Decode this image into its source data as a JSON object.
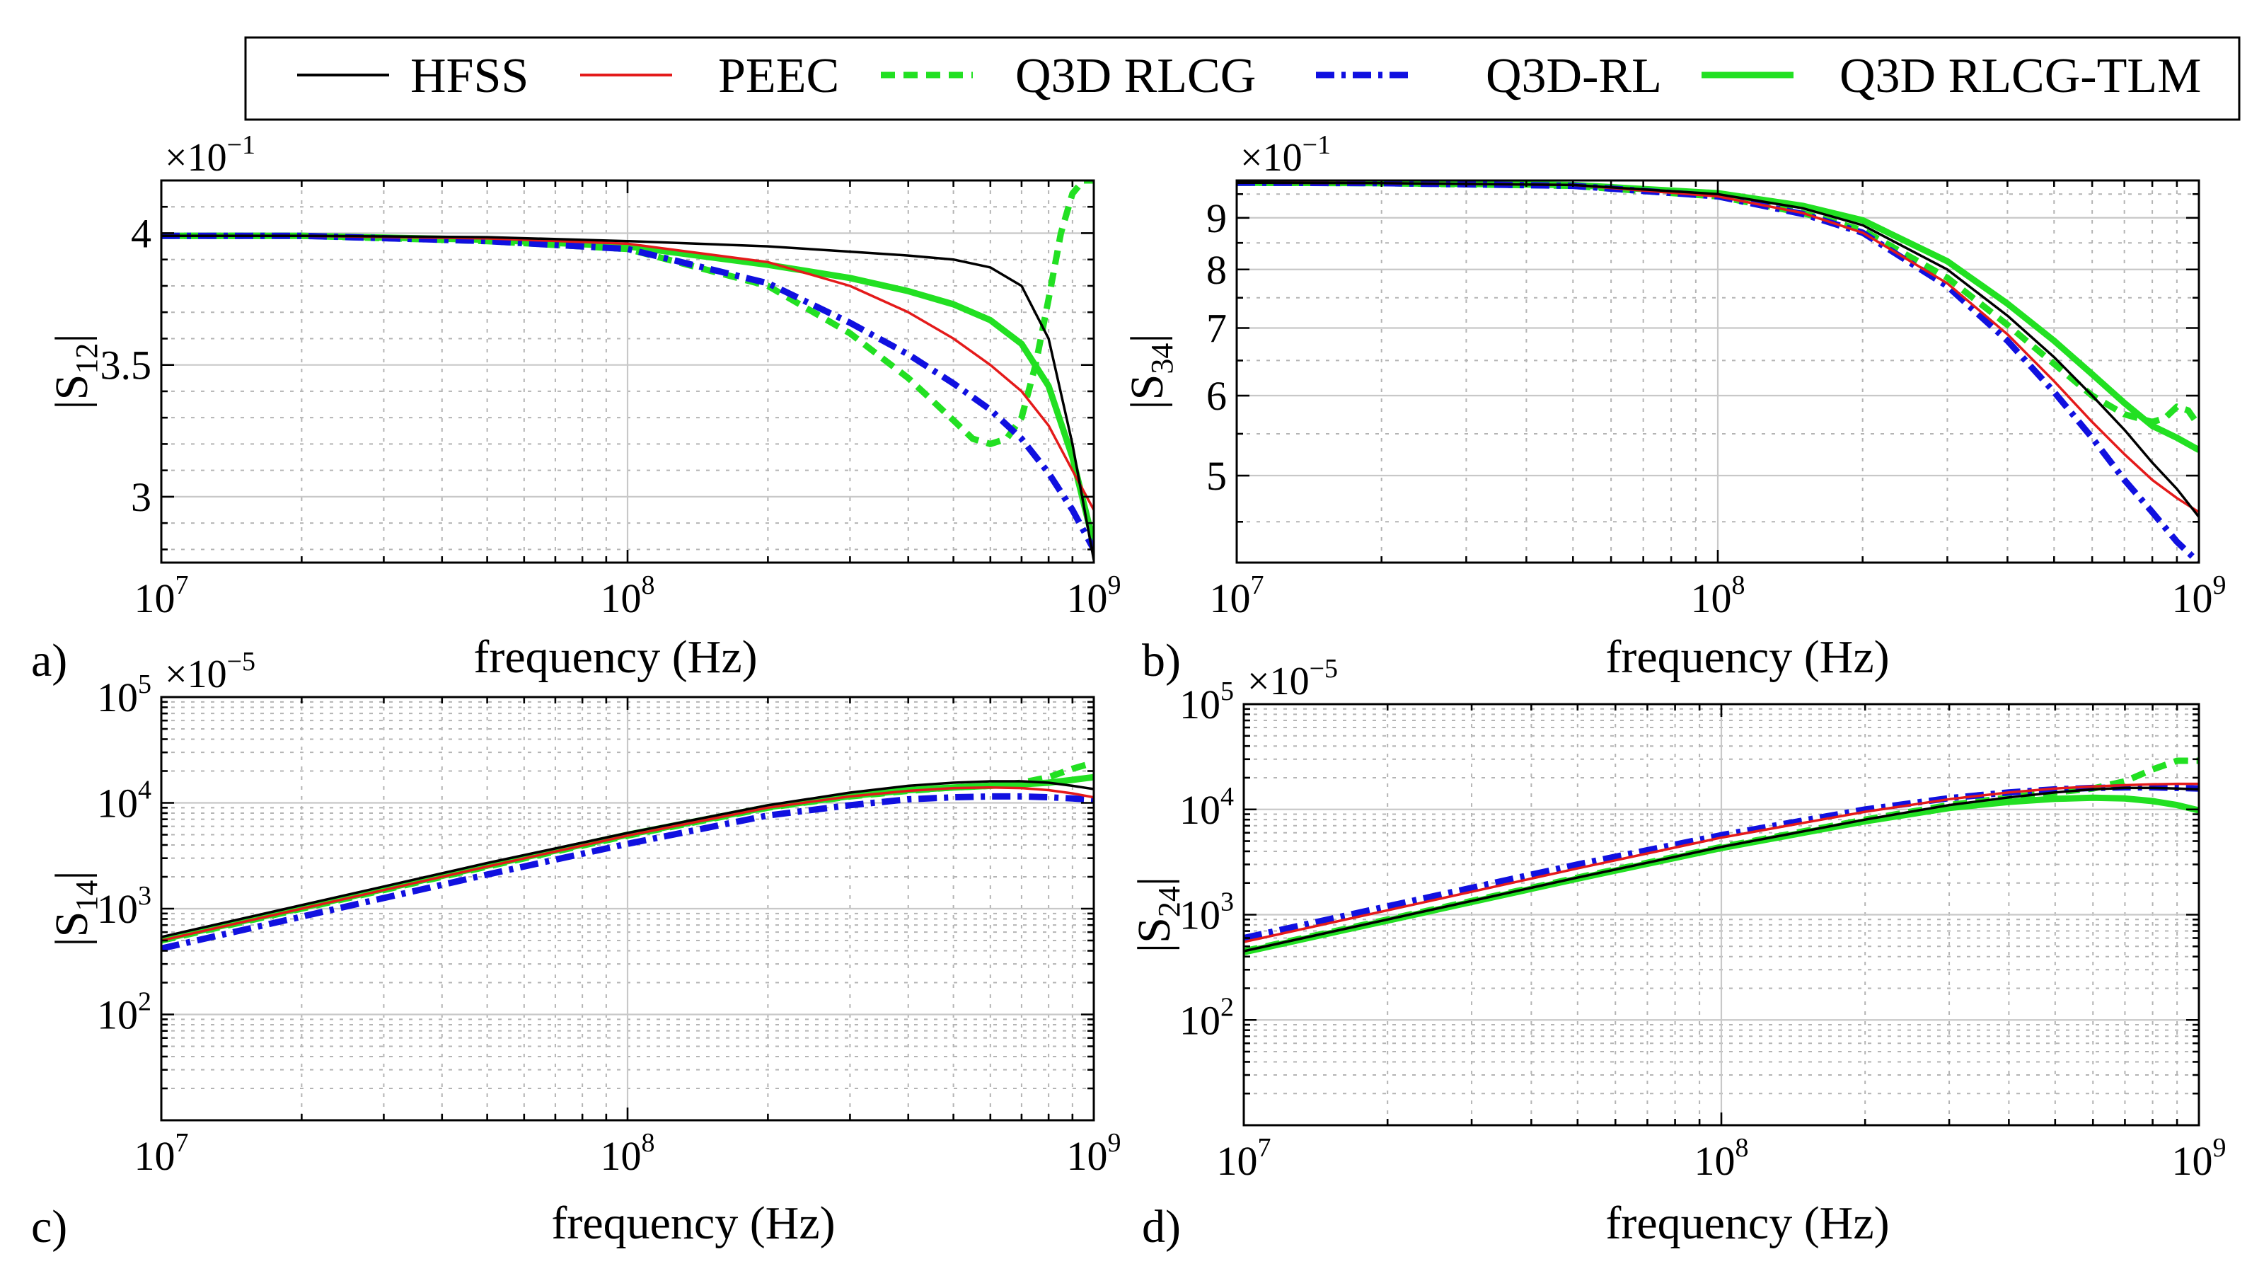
{
  "legend": {
    "entries": [
      {
        "label": "HFSS",
        "color": "#000000",
        "style": "solid",
        "width": 3.5
      },
      {
        "label": "PEEC",
        "color": "#e41a1a",
        "style": "solid",
        "width": 3.5
      },
      {
        "label": "Q3D RLCG",
        "color": "#22e022",
        "style": "dashed",
        "width": 9
      },
      {
        "label": "Q3D-RL",
        "color": "#1010e0",
        "style": "dashdot",
        "width": 9
      },
      {
        "label": "Q3D RLCG-TLM",
        "color": "#22e022",
        "style": "solid",
        "width": 9
      }
    ]
  },
  "chart_data": [
    {
      "panel": "a)",
      "type": "line",
      "xlabel": "frequency (Hz)",
      "ylabel_main": "|S",
      "ylabel_sub": "12",
      "ylabel_end": "|",
      "exponent_label": "×10",
      "exponent_sup": "−1",
      "xscale": "log",
      "yscale": "linear",
      "xlim": [
        10000000.0,
        1000000000.0
      ],
      "ylim": [
        2.75,
        4.2
      ],
      "xticks": [
        {
          "v": 10000000.0,
          "base": "10",
          "sup": "7"
        },
        {
          "v": 100000000.0,
          "base": "10",
          "sup": "8"
        },
        {
          "v": 1000000000.0,
          "base": "10",
          "sup": "9"
        }
      ],
      "yticks": [
        {
          "v": 3,
          "label": "3"
        },
        {
          "v": 3.5,
          "label": "3.5"
        },
        {
          "v": 4,
          "label": "4"
        }
      ],
      "yminor": [
        2.8,
        2.9,
        3.1,
        3.2,
        3.3,
        3.4,
        3.6,
        3.7,
        3.8,
        3.9,
        4.1
      ],
      "series": [
        {
          "name": "HFSS",
          "x": [
            10000000.0,
            20000000.0,
            50000000.0,
            100000000.0,
            200000000.0,
            300000000.0,
            400000000.0,
            500000000.0,
            600000000.0,
            700000000.0,
            800000000.0,
            900000000.0,
            1000000000.0
          ],
          "y": [
            3.99,
            3.99,
            3.985,
            3.97,
            3.95,
            3.93,
            3.915,
            3.9,
            3.87,
            3.8,
            3.6,
            3.2,
            2.76
          ]
        },
        {
          "name": "PEEC",
          "x": [
            10000000.0,
            20000000.0,
            50000000.0,
            100000000.0,
            200000000.0,
            300000000.0,
            400000000.0,
            500000000.0,
            600000000.0,
            700000000.0,
            800000000.0,
            900000000.0,
            1000000000.0
          ],
          "y": [
            3.99,
            3.99,
            3.98,
            3.96,
            3.89,
            3.8,
            3.7,
            3.6,
            3.5,
            3.4,
            3.27,
            3.1,
            2.95
          ]
        },
        {
          "name": "Q3D RLCG",
          "x": [
            10000000.0,
            20000000.0,
            50000000.0,
            100000000.0,
            200000000.0,
            300000000.0,
            400000000.0,
            500000000.0,
            550000000.0,
            600000000.0,
            650000000.0,
            700000000.0,
            750000000.0,
            800000000.0,
            850000000.0,
            900000000.0,
            950000000.0,
            1000000000.0
          ],
          "y": [
            3.99,
            3.99,
            3.97,
            3.94,
            3.8,
            3.62,
            3.45,
            3.29,
            3.22,
            3.2,
            3.22,
            3.3,
            3.5,
            3.75,
            4.0,
            4.15,
            4.2,
            4.2
          ]
        },
        {
          "name": "Q3D-RL",
          "x": [
            10000000.0,
            20000000.0,
            50000000.0,
            100000000.0,
            200000000.0,
            300000000.0,
            400000000.0,
            500000000.0,
            600000000.0,
            700000000.0,
            800000000.0,
            900000000.0,
            1000000000.0
          ],
          "y": [
            3.99,
            3.99,
            3.97,
            3.94,
            3.81,
            3.66,
            3.54,
            3.43,
            3.33,
            3.22,
            3.09,
            2.95,
            2.8
          ]
        },
        {
          "name": "Q3D RLCG-TLM",
          "x": [
            10000000.0,
            20000000.0,
            50000000.0,
            100000000.0,
            200000000.0,
            300000000.0,
            400000000.0,
            500000000.0,
            600000000.0,
            700000000.0,
            800000000.0,
            900000000.0,
            1000000000.0
          ],
          "y": [
            3.99,
            3.99,
            3.975,
            3.95,
            3.88,
            3.83,
            3.78,
            3.73,
            3.67,
            3.58,
            3.42,
            3.15,
            2.82
          ]
        }
      ]
    },
    {
      "panel": "b)",
      "type": "line",
      "xlabel": "frequency (Hz)",
      "ylabel_main": "|S",
      "ylabel_sub": "34",
      "ylabel_end": "|",
      "exponent_label": "×10",
      "exponent_sup": "−1",
      "xscale": "log",
      "yscale": "log",
      "xlim": [
        10000000.0,
        1000000000.0
      ],
      "ylim": [
        4.1,
        9.8
      ],
      "xticks": [
        {
          "v": 10000000.0,
          "base": "10",
          "sup": "7"
        },
        {
          "v": 100000000.0,
          "base": "10",
          "sup": "8"
        },
        {
          "v": 1000000000.0,
          "base": "10",
          "sup": "9"
        }
      ],
      "yticks": [
        {
          "v": 5,
          "label": "5"
        },
        {
          "v": 6,
          "label": "6"
        },
        {
          "v": 7,
          "label": "7"
        },
        {
          "v": 8,
          "label": "8"
        },
        {
          "v": 9,
          "label": "9"
        }
      ],
      "yminor": [
        4.5,
        5.5,
        6.5,
        7.5,
        8.5,
        9.5
      ],
      "series": [
        {
          "name": "HFSS",
          "x": [
            10000000.0,
            20000000.0,
            50000000.0,
            100000000.0,
            150000000.0,
            200000000.0,
            300000000.0,
            400000000.0,
            500000000.0,
            600000000.0,
            700000000.0,
            800000000.0,
            900000000.0,
            1000000000.0
          ],
          "y": [
            9.75,
            9.74,
            9.7,
            9.5,
            9.2,
            8.85,
            8.0,
            7.2,
            6.55,
            6.0,
            5.55,
            5.15,
            4.85,
            4.55
          ]
        },
        {
          "name": "PEEC",
          "x": [
            10000000.0,
            20000000.0,
            50000000.0,
            100000000.0,
            150000000.0,
            200000000.0,
            300000000.0,
            400000000.0,
            500000000.0,
            600000000.0,
            700000000.0,
            800000000.0,
            900000000.0,
            1000000000.0
          ],
          "y": [
            9.75,
            9.74,
            9.7,
            9.45,
            9.1,
            8.7,
            7.75,
            6.9,
            6.2,
            5.65,
            5.25,
            4.95,
            4.75,
            4.6
          ]
        },
        {
          "name": "Q3D RLCG",
          "x": [
            10000000.0,
            20000000.0,
            50000000.0,
            100000000.0,
            150000000.0,
            200000000.0,
            300000000.0,
            400000000.0,
            500000000.0,
            600000000.0,
            700000000.0,
            800000000.0,
            850000000.0,
            900000000.0,
            950000000.0,
            1000000000.0
          ],
          "y": [
            9.75,
            9.74,
            9.68,
            9.45,
            9.1,
            8.75,
            7.85,
            7.05,
            6.45,
            6.0,
            5.75,
            5.65,
            5.7,
            5.85,
            5.8,
            5.6
          ]
        },
        {
          "name": "Q3D-RL",
          "x": [
            10000000.0,
            20000000.0,
            50000000.0,
            100000000.0,
            150000000.0,
            200000000.0,
            300000000.0,
            400000000.0,
            500000000.0,
            600000000.0,
            700000000.0,
            800000000.0,
            900000000.0,
            1000000000.0
          ],
          "y": [
            9.75,
            9.74,
            9.68,
            9.45,
            9.08,
            8.7,
            7.7,
            6.8,
            6.05,
            5.45,
            4.95,
            4.6,
            4.3,
            4.1
          ]
        },
        {
          "name": "Q3D RLCG-TLM",
          "x": [
            10000000.0,
            20000000.0,
            50000000.0,
            100000000.0,
            150000000.0,
            200000000.0,
            300000000.0,
            400000000.0,
            500000000.0,
            600000000.0,
            700000000.0,
            800000000.0,
            900000000.0,
            1000000000.0
          ],
          "y": [
            9.75,
            9.74,
            9.7,
            9.52,
            9.25,
            8.95,
            8.15,
            7.4,
            6.8,
            6.3,
            5.9,
            5.6,
            5.45,
            5.3
          ]
        }
      ]
    },
    {
      "panel": "c)",
      "type": "line",
      "xlabel": "frequency (Hz)",
      "ylabel_main": "|S",
      "ylabel_sub": "14",
      "ylabel_end": "|",
      "exponent_label": "×10",
      "exponent_sup": "−5",
      "xscale": "log",
      "yscale": "log",
      "xlim": [
        10000000.0,
        1000000000.0
      ],
      "ylim": [
        10,
        100000
      ],
      "xticks": [
        {
          "v": 10000000.0,
          "base": "10",
          "sup": "7"
        },
        {
          "v": 100000000.0,
          "base": "10",
          "sup": "8"
        },
        {
          "v": 1000000000.0,
          "base": "10",
          "sup": "9"
        }
      ],
      "yticks": [
        {
          "v": 100,
          "base": "10",
          "sup": "2"
        },
        {
          "v": 1000,
          "base": "10",
          "sup": "3"
        },
        {
          "v": 10000,
          "base": "10",
          "sup": "4"
        },
        {
          "v": 100000,
          "base": "10",
          "sup": "5"
        }
      ],
      "yminor": [
        20,
        30,
        40,
        50,
        60,
        70,
        80,
        90,
        200,
        300,
        400,
        500,
        600,
        700,
        800,
        900,
        2000,
        3000,
        4000,
        5000,
        6000,
        7000,
        8000,
        9000,
        20000,
        30000,
        40000,
        50000,
        60000,
        70000,
        80000,
        90000
      ],
      "series": [
        {
          "name": "HFSS",
          "x": [
            10000000.0,
            20000000.0,
            50000000.0,
            100000000.0,
            200000000.0,
            300000000.0,
            400000000.0,
            500000000.0,
            600000000.0,
            700000000.0,
            800000000.0,
            900000000.0,
            1000000000.0
          ],
          "y": [
            540,
            1080,
            2700,
            5200,
            9500,
            12500,
            14500,
            15500,
            16000,
            16000,
            15500,
            14500,
            13500
          ]
        },
        {
          "name": "PEEC",
          "x": [
            10000000.0,
            20000000.0,
            50000000.0,
            100000000.0,
            200000000.0,
            300000000.0,
            400000000.0,
            500000000.0,
            600000000.0,
            700000000.0,
            800000000.0,
            900000000.0,
            1000000000.0
          ],
          "y": [
            500,
            1000,
            2500,
            4900,
            9000,
            11500,
            13000,
            13800,
            14000,
            13800,
            13200,
            12300,
            11300
          ]
        },
        {
          "name": "Q3D RLCG",
          "x": [
            10000000.0,
            20000000.0,
            50000000.0,
            100000000.0,
            200000000.0,
            300000000.0,
            400000000.0,
            500000000.0,
            600000000.0,
            700000000.0,
            800000000.0,
            900000000.0,
            1000000000.0
          ],
          "y": [
            500,
            1000,
            2500,
            4900,
            9000,
            11500,
            13000,
            14000,
            14500,
            15500,
            17500,
            21000,
            24000
          ]
        },
        {
          "name": "Q3D-RL",
          "x": [
            10000000.0,
            20000000.0,
            50000000.0,
            100000000.0,
            200000000.0,
            300000000.0,
            400000000.0,
            500000000.0,
            600000000.0,
            700000000.0,
            800000000.0,
            900000000.0,
            1000000000.0
          ],
          "y": [
            420,
            840,
            2100,
            4100,
            7600,
            9500,
            10800,
            11300,
            11500,
            11500,
            11300,
            11000,
            10700
          ]
        },
        {
          "name": "Q3D RLCG-TLM",
          "x": [
            10000000.0,
            20000000.0,
            50000000.0,
            100000000.0,
            200000000.0,
            300000000.0,
            400000000.0,
            500000000.0,
            600000000.0,
            700000000.0,
            800000000.0,
            900000000.0,
            1000000000.0
          ],
          "y": [
            510,
            1020,
            2550,
            5000,
            9100,
            11600,
            13200,
            14000,
            14500,
            15000,
            15500,
            16500,
            17500
          ]
        }
      ]
    },
    {
      "panel": "d)",
      "type": "line",
      "xlabel": "frequency (Hz)",
      "ylabel_main": "|S",
      "ylabel_sub": "24",
      "ylabel_end": "|",
      "exponent_label": "×10",
      "exponent_sup": "−5",
      "xscale": "log",
      "yscale": "log",
      "xlim": [
        10000000.0,
        1000000000.0
      ],
      "ylim": [
        10,
        100000
      ],
      "xticks": [
        {
          "v": 10000000.0,
          "base": "10",
          "sup": "7"
        },
        {
          "v": 100000000.0,
          "base": "10",
          "sup": "8"
        },
        {
          "v": 1000000000.0,
          "base": "10",
          "sup": "9"
        }
      ],
      "yticks": [
        {
          "v": 100,
          "base": "10",
          "sup": "2"
        },
        {
          "v": 1000,
          "base": "10",
          "sup": "3"
        },
        {
          "v": 10000,
          "base": "10",
          "sup": "4"
        },
        {
          "v": 100000,
          "base": "10",
          "sup": "5"
        }
      ],
      "yminor": [
        20,
        30,
        40,
        50,
        60,
        70,
        80,
        90,
        200,
        300,
        400,
        500,
        600,
        700,
        800,
        900,
        2000,
        3000,
        4000,
        5000,
        6000,
        7000,
        8000,
        9000,
        20000,
        30000,
        40000,
        50000,
        60000,
        70000,
        80000,
        90000
      ],
      "series": [
        {
          "name": "HFSS",
          "x": [
            10000000.0,
            20000000.0,
            50000000.0,
            100000000.0,
            200000000.0,
            300000000.0,
            400000000.0,
            500000000.0,
            600000000.0,
            700000000.0,
            800000000.0,
            900000000.0,
            1000000000.0
          ],
          "y": [
            450,
            900,
            2250,
            4400,
            8000,
            11000,
            13000,
            14500,
            15500,
            16000,
            16000,
            15800,
            15500
          ]
        },
        {
          "name": "PEEC",
          "x": [
            10000000.0,
            20000000.0,
            50000000.0,
            100000000.0,
            200000000.0,
            300000000.0,
            400000000.0,
            500000000.0,
            600000000.0,
            700000000.0,
            800000000.0,
            900000000.0,
            1000000000.0
          ],
          "y": [
            550,
            1100,
            2750,
            5400,
            9500,
            12500,
            14500,
            15800,
            16500,
            17000,
            17300,
            17500,
            17500
          ]
        },
        {
          "name": "Q3D RLCG",
          "x": [
            10000000.0,
            20000000.0,
            50000000.0,
            100000000.0,
            200000000.0,
            300000000.0,
            400000000.0,
            500000000.0,
            600000000.0,
            700000000.0,
            800000000.0,
            900000000.0,
            1000000000.0
          ],
          "y": [
            450,
            900,
            2250,
            4400,
            8000,
            11000,
            13000,
            14500,
            15800,
            18500,
            24000,
            29000,
            29000
          ]
        },
        {
          "name": "Q3D-RL",
          "x": [
            10000000.0,
            20000000.0,
            50000000.0,
            100000000.0,
            200000000.0,
            300000000.0,
            400000000.0,
            500000000.0,
            600000000.0,
            700000000.0,
            800000000.0,
            900000000.0,
            1000000000.0
          ],
          "y": [
            600,
            1200,
            3000,
            5700,
            10000,
            12800,
            14500,
            15500,
            16000,
            16200,
            16200,
            16000,
            15800
          ]
        },
        {
          "name": "Q3D RLCG-TLM",
          "x": [
            10000000.0,
            20000000.0,
            50000000.0,
            100000000.0,
            200000000.0,
            300000000.0,
            400000000.0,
            500000000.0,
            600000000.0,
            700000000.0,
            800000000.0,
            900000000.0,
            1000000000.0
          ],
          "y": [
            440,
            880,
            2200,
            4300,
            7700,
            10300,
            11800,
            12600,
            12900,
            12700,
            12000,
            11000,
            9800
          ]
        }
      ]
    }
  ]
}
